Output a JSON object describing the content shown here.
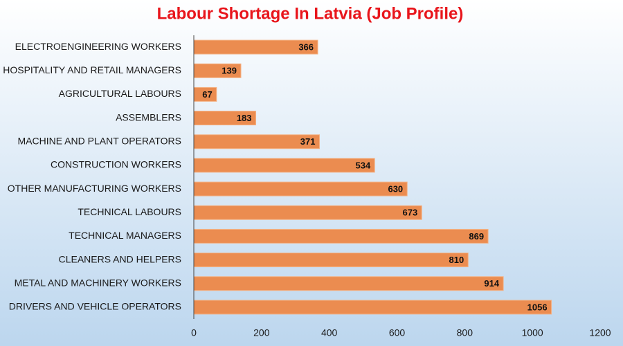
{
  "chart_data": {
    "type": "hbar",
    "title": "Labour Shortage In Latvia (Job Profile)",
    "categories": [
      "ELECTROENGINEERING WORKERS",
      "HOSPITALITY AND RETAIL MANAGERS",
      "AGRICULTURAL LABOURS",
      "ASSEMBLERS",
      "MACHINE AND PLANT OPERATORS",
      "CONSTRUCTION WORKERS",
      "OTHER MANUFACTURING WORKERS",
      "TECHNICAL LABOURS",
      "TECHNICAL MANAGERS",
      "CLEANERS AND HELPERS",
      "METAL AND MACHINERY WORKERS",
      "DRIVERS AND VEHICLE OPERATORS"
    ],
    "values": [
      366,
      139,
      67,
      183,
      371,
      534,
      630,
      673,
      869,
      810,
      914,
      1056
    ],
    "color": "#eb8c50",
    "xlim": [
      0,
      1200
    ],
    "xticks": [
      0,
      200,
      400,
      600,
      800,
      1000,
      1200
    ],
    "grid": false
  }
}
